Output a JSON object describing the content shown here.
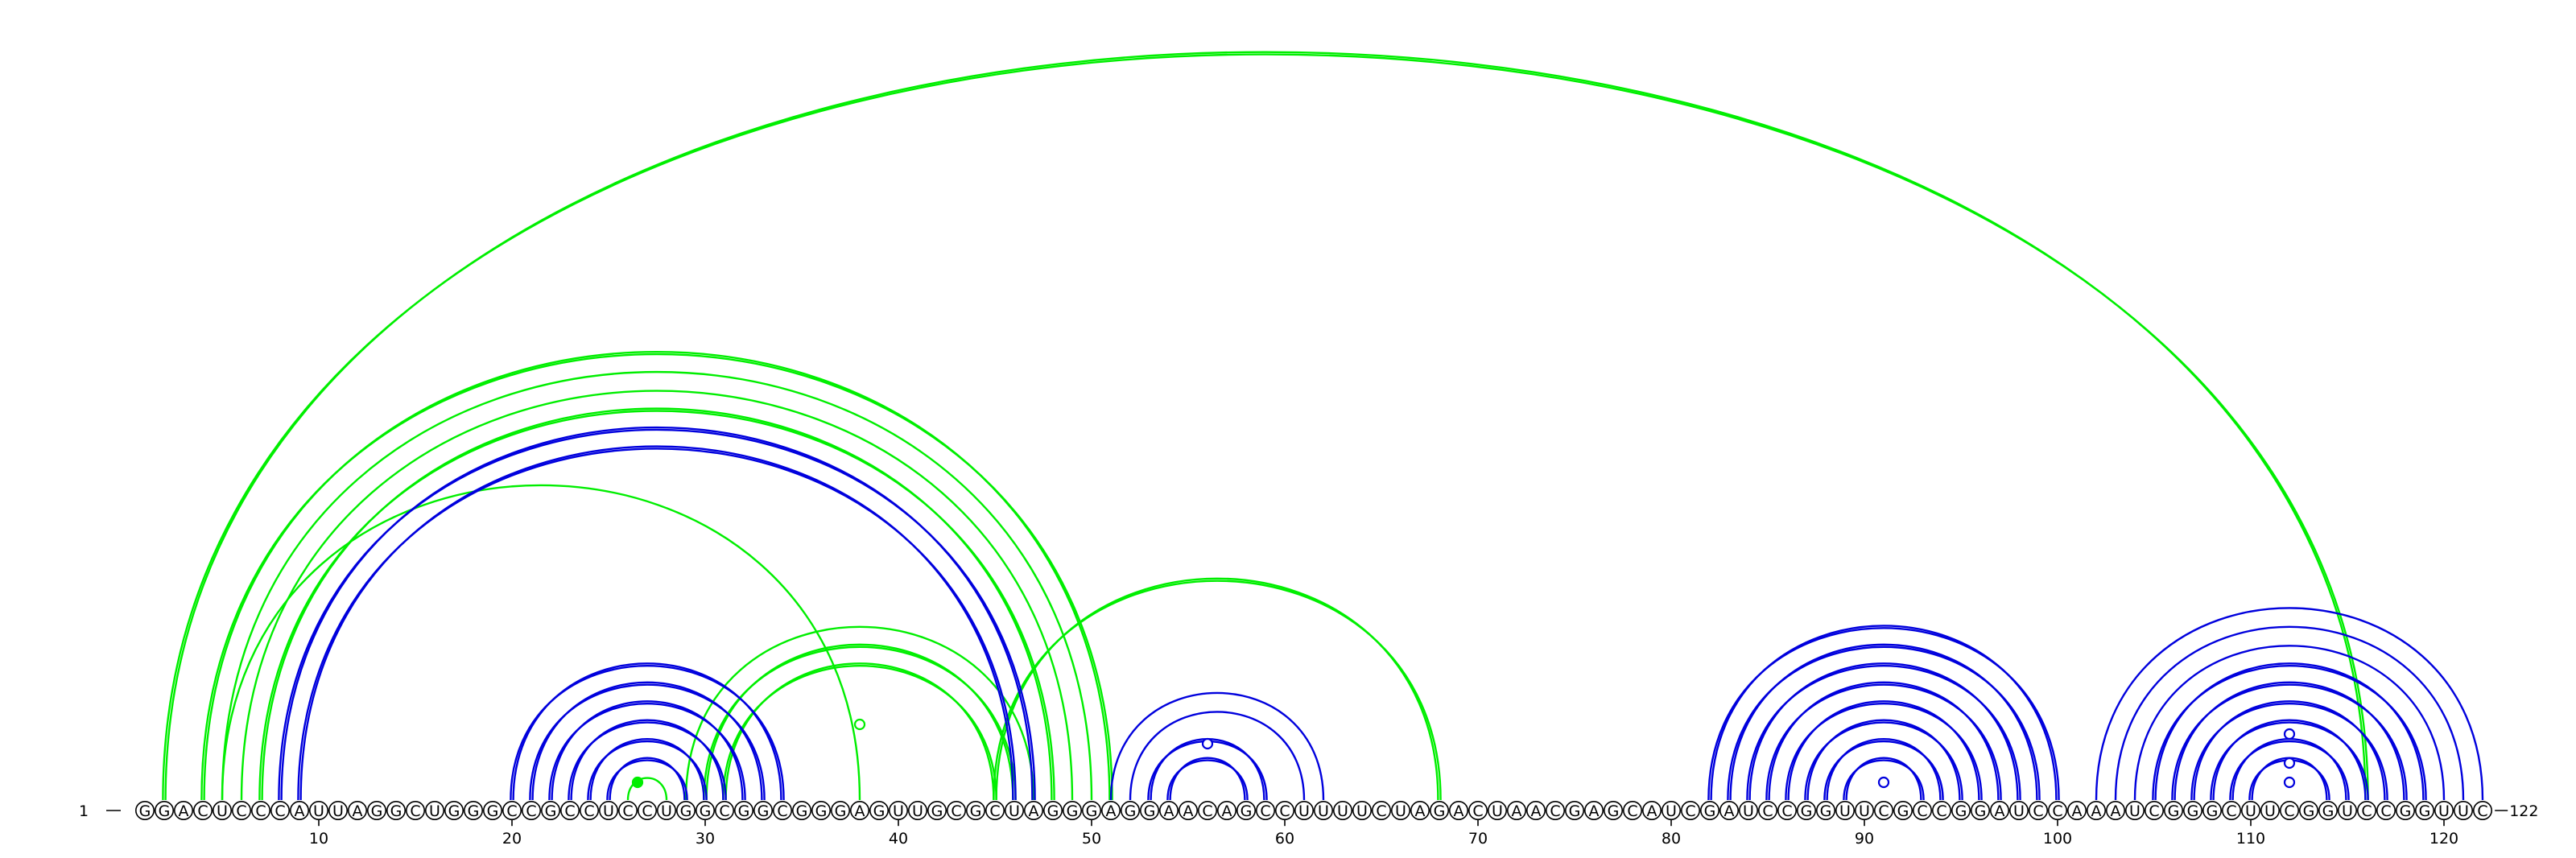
{
  "sequence": "GGACUCCCAUUAGGCUGGGCCGCCUCCUGGCGGCGGGAGUUGCGCUAGGGAGGAACAGCCUUUUCUAGACUAACGAGCAUCGAUCCGGUUCGCCGGAUCCAAAUCGGGCUUCGGUCCGGUUC",
  "start_label": "1",
  "end_label": "122",
  "tick_labels": [
    "10",
    "20",
    "30",
    "40",
    "50",
    "60",
    "70",
    "80",
    "90",
    "100",
    "110",
    "120"
  ],
  "colors": {
    "blue": "#0000dd",
    "green": "#00ee00",
    "ink": "#000000"
  },
  "chart_data": {
    "type": "arc-diagram",
    "length": 122,
    "x_ticks": [
      10,
      20,
      30,
      40,
      50,
      60,
      70,
      80,
      90,
      100,
      110,
      120
    ],
    "pairs_green": [
      {
        "i": 2,
        "j": 116,
        "lines": 2
      },
      {
        "i": 4,
        "j": 51,
        "lines": 2
      },
      {
        "i": 5,
        "j": 50,
        "lines": 1
      },
      {
        "i": 6,
        "j": 49,
        "lines": 1
      },
      {
        "i": 7,
        "j": 48,
        "lines": 2
      },
      {
        "i": 5,
        "j": 38,
        "lines": 1
      },
      {
        "i": 31,
        "j": 45,
        "lines": 2
      },
      {
        "i": 30,
        "j": 46,
        "lines": 2
      },
      {
        "i": 29,
        "j": 47,
        "lines": 1
      },
      {
        "i": 45,
        "j": 68,
        "lines": 2
      },
      {
        "i": 26,
        "j": 28,
        "lines": 1
      }
    ],
    "pairs_blue": [
      {
        "i": 8,
        "j": 47,
        "lines": 2
      },
      {
        "i": 9,
        "j": 46,
        "lines": 2
      },
      {
        "i": 20,
        "j": 34,
        "lines": 2
      },
      {
        "i": 21,
        "j": 33,
        "lines": 2
      },
      {
        "i": 22,
        "j": 32,
        "lines": 2
      },
      {
        "i": 23,
        "j": 31,
        "lines": 2
      },
      {
        "i": 24,
        "j": 30,
        "lines": 2
      },
      {
        "i": 25,
        "j": 29,
        "lines": 2
      },
      {
        "i": 51,
        "j": 62,
        "lines": 1
      },
      {
        "i": 52,
        "j": 61,
        "lines": 1
      },
      {
        "i": 53,
        "j": 59,
        "lines": 2
      },
      {
        "i": 54,
        "j": 58,
        "lines": 2
      },
      {
        "i": 82,
        "j": 100,
        "lines": 2
      },
      {
        "i": 83,
        "j": 99,
        "lines": 2
      },
      {
        "i": 84,
        "j": 98,
        "lines": 2
      },
      {
        "i": 85,
        "j": 97,
        "lines": 2
      },
      {
        "i": 86,
        "j": 96,
        "lines": 2
      },
      {
        "i": 87,
        "j": 95,
        "lines": 2
      },
      {
        "i": 88,
        "j": 94,
        "lines": 2
      },
      {
        "i": 89,
        "j": 93,
        "lines": 2
      },
      {
        "i": 102,
        "j": 122,
        "lines": 1
      },
      {
        "i": 103,
        "j": 121,
        "lines": 1
      },
      {
        "i": 104,
        "j": 120,
        "lines": 1
      },
      {
        "i": 105,
        "j": 119,
        "lines": 2
      },
      {
        "i": 106,
        "j": 118,
        "lines": 2
      },
      {
        "i": 107,
        "j": 117,
        "lines": 2
      },
      {
        "i": 108,
        "j": 116,
        "lines": 2
      },
      {
        "i": 109,
        "j": 115,
        "lines": 2
      },
      {
        "i": 110,
        "j": 114,
        "lines": 2
      }
    ],
    "markers": [
      {
        "pos": 26.5,
        "level": 0.5,
        "color": "green",
        "filled": true
      },
      {
        "pos": 38,
        "level": 3.5,
        "color": "green",
        "filled": false
      },
      {
        "pos": 56,
        "level": 2.5,
        "color": "blue",
        "filled": false
      },
      {
        "pos": 91,
        "level": 0.5,
        "color": "blue",
        "filled": false
      },
      {
        "pos": 112,
        "level": 3.0,
        "color": "blue",
        "filled": false
      },
      {
        "pos": 112,
        "level": 1.5,
        "color": "blue",
        "filled": false
      },
      {
        "pos": 112,
        "level": 0.5,
        "color": "blue",
        "filled": false
      }
    ]
  }
}
